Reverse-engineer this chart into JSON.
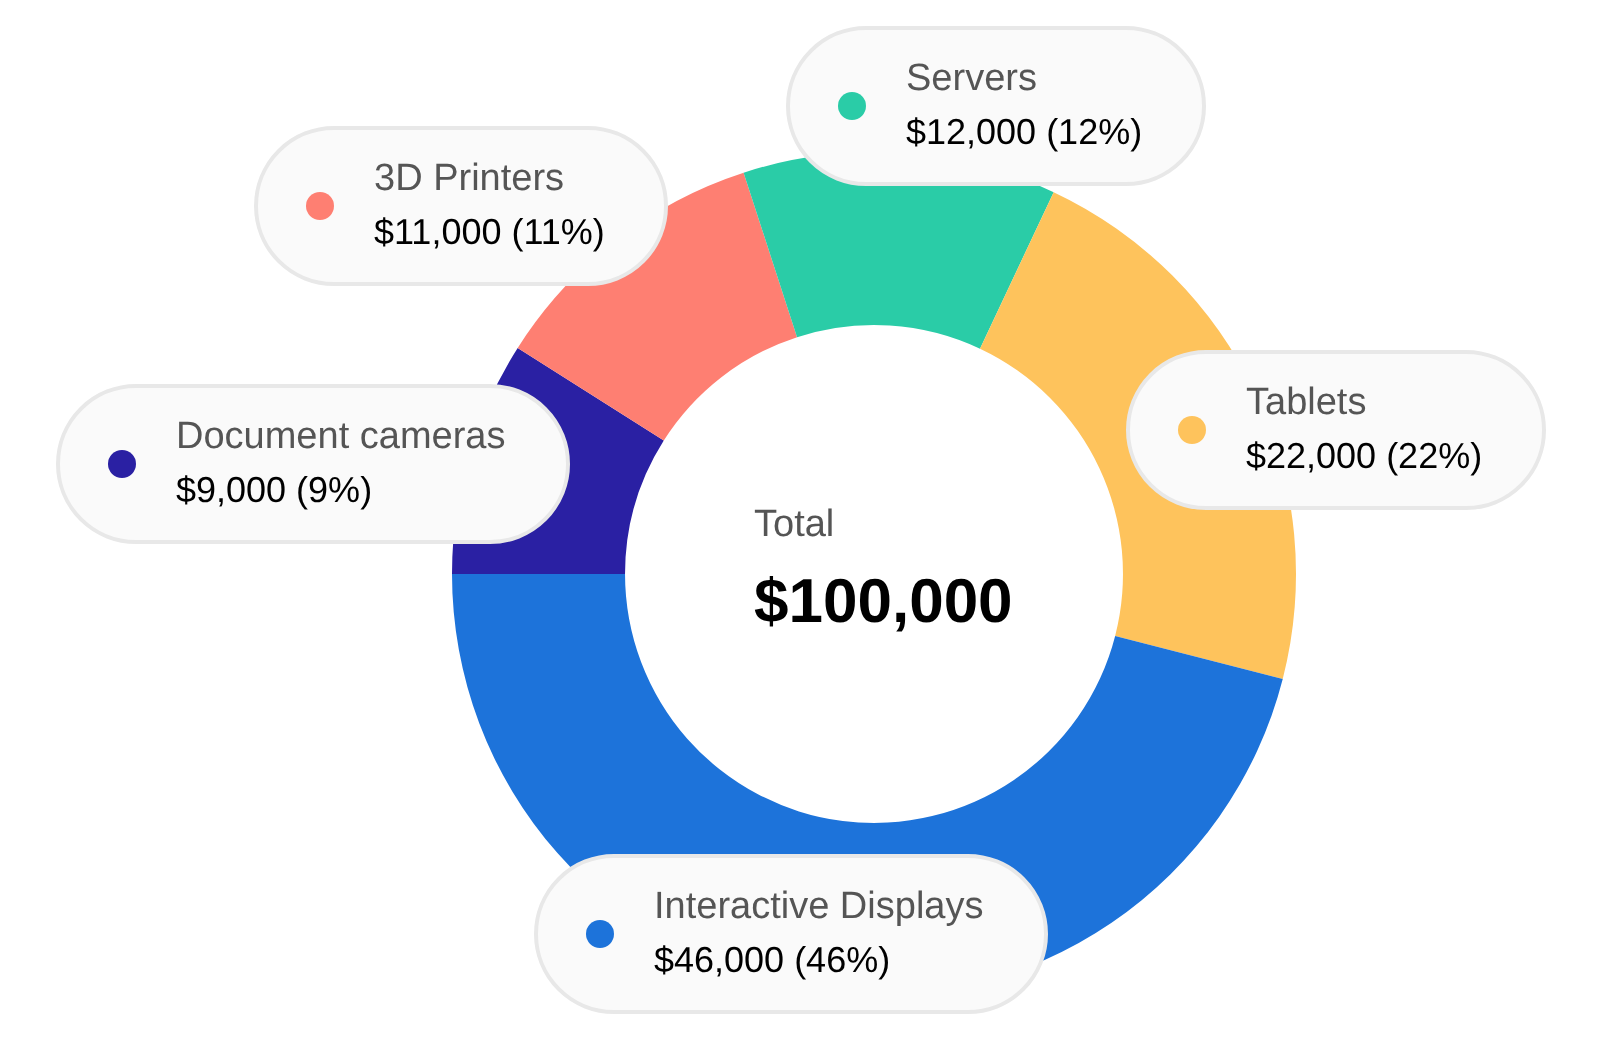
{
  "chart_data": {
    "type": "donut",
    "categories": [
      "Document cameras",
      "3D Printers",
      "Servers",
      "Tablets",
      "Interactive Displays"
    ],
    "values": [
      9000,
      11000,
      12000,
      22000,
      46000
    ],
    "colors": [
      "#2a20a3",
      "#fe7f72",
      "#2acca7",
      "#fec35c",
      "#1d73da"
    ],
    "value_labels": [
      "$9,000 (9%)",
      "$11,000 (11%)",
      "$12,000 (12%)",
      "$22,000 (22%)",
      "$46,000 (46%)"
    ],
    "annotations": [
      "Total",
      "$100,000"
    ]
  }
}
